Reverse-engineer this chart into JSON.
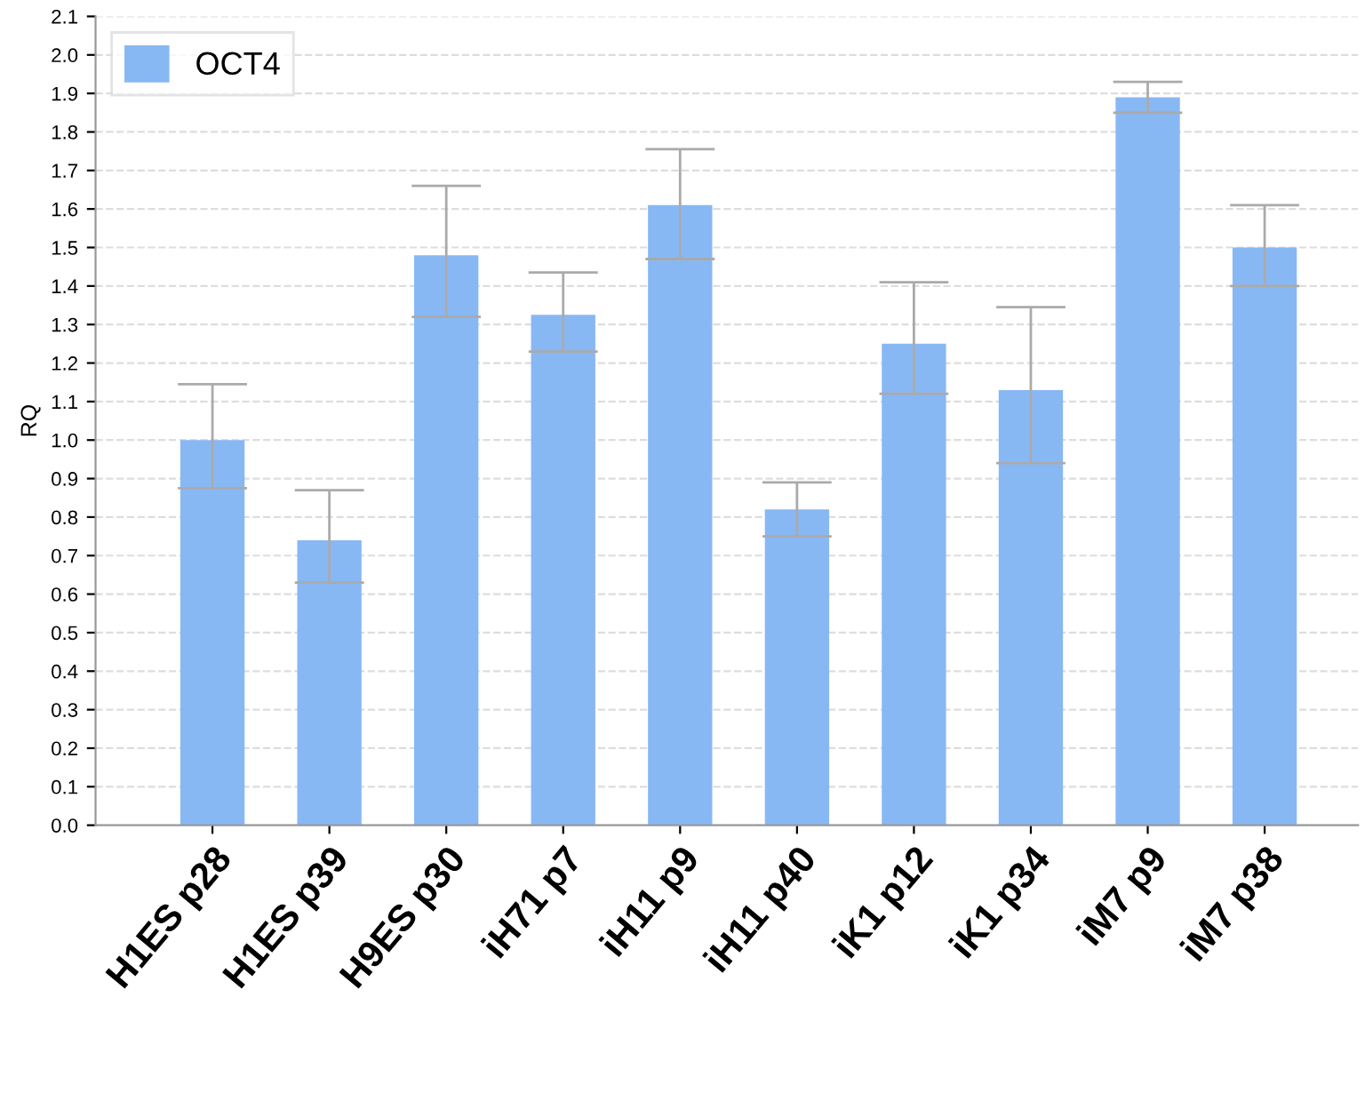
{
  "chart_data": {
    "type": "bar",
    "ylabel": "RQ",
    "categories": [
      "H1ES p28",
      "H1ES p39",
      "H9ES p30",
      "iH71 p7",
      "iH11 p9",
      "iH11 p40",
      "iK1 p12",
      "iK1 p34",
      "iM7 p9",
      "iM7 p38"
    ],
    "series": [
      {
        "name": "OCT4",
        "color": "#88b8f4",
        "values": [
          1.0,
          0.74,
          1.48,
          1.325,
          1.61,
          0.82,
          1.25,
          1.13,
          1.89,
          1.5
        ],
        "errors": [
          [
            0.875,
            1.145
          ],
          [
            0.63,
            0.87
          ],
          [
            1.32,
            1.66
          ],
          [
            1.23,
            1.435
          ],
          [
            1.47,
            1.755
          ],
          [
            0.75,
            0.89
          ],
          [
            1.12,
            1.41
          ],
          [
            0.94,
            1.345
          ],
          [
            1.85,
            1.93
          ],
          [
            1.4,
            1.61
          ]
        ]
      }
    ],
    "ylim": [
      0,
      2.1
    ],
    "yticks": [
      {
        "value": 0,
        "label": "0.0"
      },
      0.1,
      0.2,
      0.3,
      0.4,
      0.5,
      0.6,
      0.7,
      0.8,
      0.9,
      {
        "value": 1,
        "label": "1.0"
      },
      1.1,
      1.2,
      1.3,
      1.4,
      1.5,
      1.6,
      1.7,
      1.8,
      1.9,
      {
        "value": 2,
        "label": "2.0"
      },
      2.1
    ],
    "grid": "y",
    "legend": "top left"
  }
}
